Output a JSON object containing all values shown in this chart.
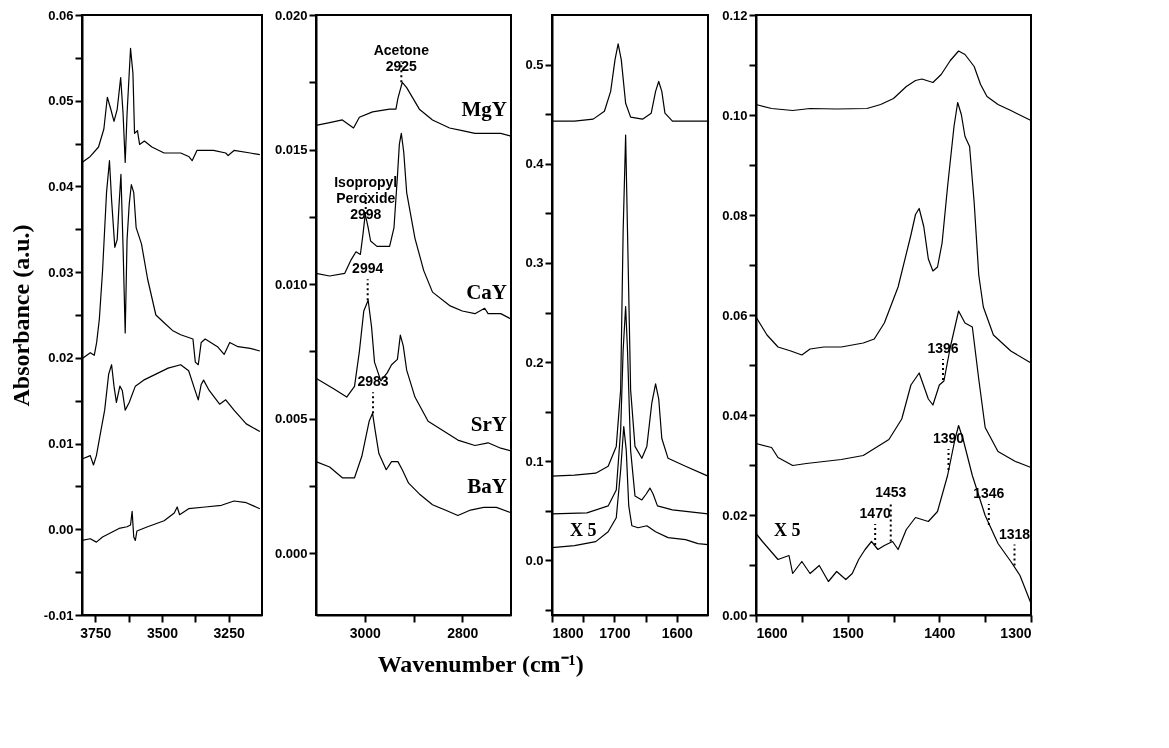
{
  "chart_data": [
    {
      "type": "line",
      "ylabel": "Absorbance (a.u.)",
      "xlim": [
        3800,
        3125
      ],
      "xticks": [
        {
          "value": 3750,
          "label": "3750"
        },
        {
          "value": 3625,
          "label": null
        },
        {
          "value": 3500,
          "label": "3500"
        },
        {
          "value": 3375,
          "label": null
        },
        {
          "value": 3250,
          "label": "3250"
        }
      ],
      "ylim": [
        -0.01,
        0.06
      ],
      "yticks": [
        {
          "value": -0.01,
          "label": "-0.01"
        },
        {
          "value": -0.005,
          "label": null
        },
        {
          "value": 0,
          "label": "0.00"
        },
        {
          "value": 0.005,
          "label": null
        },
        {
          "value": 0.01,
          "label": "0.01"
        },
        {
          "value": 0.015,
          "label": null
        },
        {
          "value": 0.02,
          "label": "0.02"
        },
        {
          "value": 0.025,
          "label": null
        },
        {
          "value": 0.03,
          "label": "0.03"
        },
        {
          "value": 0.035,
          "label": null
        },
        {
          "value": 0.04,
          "label": "0.04"
        },
        {
          "value": 0.045,
          "label": null
        },
        {
          "value": 0.05,
          "label": "0.05"
        },
        {
          "value": 0.055,
          "label": null
        },
        {
          "value": 0.06,
          "label": "0.06"
        }
      ],
      "series": [
        {
          "color": "#000000",
          "x": [
            3800,
            3769,
            3738,
            3718,
            3705,
            3692,
            3680,
            3668,
            3655,
            3646,
            3638,
            3631,
            3618,
            3609,
            3603,
            3592,
            3584,
            3566,
            3538,
            3492,
            3430,
            3400,
            3387,
            3369,
            3307,
            3261,
            3252,
            3230,
            3169,
            3133
          ],
          "values": [
            0.0428,
            0.0435,
            0.0446,
            0.0467,
            0.0504,
            0.049,
            0.0476,
            0.049,
            0.0527,
            0.0485,
            0.0428,
            0.0485,
            0.0561,
            0.0532,
            0.0462,
            0.0465,
            0.0449,
            0.0453,
            0.0446,
            0.0439,
            0.0439,
            0.0435,
            0.043,
            0.0442,
            0.0442,
            0.0439,
            0.0436,
            0.0442,
            0.0439,
            0.0437
          ]
        },
        {
          "color": "#000000",
          "x": [
            3800,
            3769,
            3754,
            3745,
            3735,
            3723,
            3708,
            3697,
            3689,
            3677,
            3668,
            3661,
            3654,
            3646,
            3638,
            3631,
            3623,
            3615,
            3606,
            3597,
            3577,
            3554,
            3523,
            3492,
            3461,
            3430,
            3384,
            3375,
            3364,
            3353,
            3338,
            3292,
            3267,
            3246,
            3215,
            3169,
            3133
          ],
          "values": [
            0.0199,
            0.0206,
            0.0203,
            0.0218,
            0.0245,
            0.0301,
            0.0393,
            0.043,
            0.0384,
            0.0329,
            0.0338,
            0.0379,
            0.0414,
            0.0329,
            0.0229,
            0.0338,
            0.0379,
            0.0402,
            0.0393,
            0.0352,
            0.0333,
            0.0292,
            0.025,
            0.0241,
            0.0232,
            0.0227,
            0.0222,
            0.0195,
            0.0192,
            0.0218,
            0.0222,
            0.0213,
            0.0204,
            0.0218,
            0.0213,
            0.0211,
            0.0208
          ]
        },
        {
          "color": "#000000",
          "x": [
            3800,
            3769,
            3757,
            3746,
            3731,
            3715,
            3700,
            3689,
            3680,
            3671,
            3658,
            3649,
            3638,
            3623,
            3600,
            3569,
            3523,
            3477,
            3430,
            3400,
            3376,
            3364,
            3353,
            3344,
            3323,
            3284,
            3261,
            3230,
            3184,
            3133
          ],
          "values": [
            0.0082,
            0.0086,
            0.0075,
            0.0086,
            0.0112,
            0.0139,
            0.0181,
            0.0192,
            0.0167,
            0.0148,
            0.0167,
            0.0162,
            0.0139,
            0.0148,
            0.0167,
            0.0174,
            0.0181,
            0.0188,
            0.0192,
            0.0185,
            0.0162,
            0.0151,
            0.0169,
            0.0174,
            0.0162,
            0.0146,
            0.0151,
            0.0139,
            0.0123,
            0.0114
          ]
        },
        {
          "color": "#000000",
          "x": [
            3800,
            3769,
            3746,
            3723,
            3692,
            3661,
            3631,
            3618,
            3612,
            3606,
            3600,
            3594,
            3554,
            3492,
            3454,
            3443,
            3434,
            3400,
            3338,
            3277,
            3230,
            3184,
            3133
          ],
          "values": [
            -0.0013,
            -0.0011,
            -0.0015,
            -0.0009,
            -0.0004,
            0.0001,
            0.0003,
            0.0005,
            0.0021,
            -0.0009,
            -0.0013,
            -0.0002,
            0.0003,
            0.001,
            0.0019,
            0.0026,
            0.0017,
            0.0024,
            0.0026,
            0.0028,
            0.0033,
            0.0031,
            0.0024
          ]
        }
      ]
    },
    {
      "type": "line",
      "legend": "right",
      "xlabel": "Wavenumber (cm⁻¹)",
      "xlim": [
        3100,
        2700
      ],
      "xticks": [
        {
          "value": 3000,
          "label": "3000"
        },
        {
          "value": 2900,
          "label": null
        },
        {
          "value": 2800,
          "label": "2800"
        }
      ],
      "ylim": [
        -0.0023,
        0.02
      ],
      "yticks": [
        {
          "value": 0,
          "label": "0.000"
        },
        {
          "value": 0.0025,
          "label": null
        },
        {
          "value": 0.005,
          "label": "0.005"
        },
        {
          "value": 0.0075,
          "label": null
        },
        {
          "value": 0.01,
          "label": "0.010"
        },
        {
          "value": 0.0125,
          "label": null
        },
        {
          "value": 0.015,
          "label": "0.015"
        },
        {
          "value": 0.0175,
          "label": null
        },
        {
          "value": 0.02,
          "label": "0.020"
        }
      ],
      "series": [
        {
          "name": "MgY",
          "color": "#000000",
          "x": [
            3100,
            3072,
            3046,
            3023,
            3011,
            2984,
            2949,
            2936,
            2932,
            2923,
            2914,
            2901,
            2888,
            2861,
            2826,
            2800,
            2774,
            2747,
            2721,
            2700
          ],
          "values": [
            0.0159,
            0.016,
            0.0161,
            0.0158,
            0.0162,
            0.0164,
            0.0165,
            0.0165,
            0.0169,
            0.0175,
            0.0173,
            0.0169,
            0.0165,
            0.0161,
            0.0158,
            0.0157,
            0.0156,
            0.0156,
            0.0156,
            0.0155
          ]
        },
        {
          "name": "CaY",
          "color": "#000000",
          "x": [
            3100,
            3072,
            3041,
            3028,
            3018,
            3009,
            3004,
            2999,
            2993,
            2988,
            2975,
            2949,
            2940,
            2933,
            2929,
            2925,
            2920,
            2914,
            2897,
            2879,
            2861,
            2826,
            2800,
            2774,
            2754,
            2747,
            2721,
            2700
          ],
          "values": [
            0.0104,
            0.0103,
            0.0104,
            0.0109,
            0.0112,
            0.0111,
            0.0118,
            0.0126,
            0.0121,
            0.0116,
            0.0114,
            0.0114,
            0.0121,
            0.014,
            0.0152,
            0.0156,
            0.0149,
            0.0134,
            0.0117,
            0.0105,
            0.0097,
            0.0092,
            0.009,
            0.0089,
            0.0091,
            0.0089,
            0.0089,
            0.0087
          ]
        },
        {
          "name": "SrY",
          "color": "#000000",
          "x": [
            3100,
            3063,
            3037,
            3021,
            3011,
            3002,
            2993,
            2986,
            2980,
            2967,
            2954,
            2945,
            2933,
            2927,
            2921,
            2914,
            2897,
            2870,
            2835,
            2809,
            2774,
            2747,
            2721,
            2700
          ],
          "values": [
            0.0065,
            0.0061,
            0.0058,
            0.0062,
            0.0075,
            0.009,
            0.0094,
            0.0084,
            0.0071,
            0.0064,
            0.0067,
            0.007,
            0.0072,
            0.0081,
            0.0077,
            0.0068,
            0.0058,
            0.0049,
            0.0045,
            0.0042,
            0.004,
            0.0041,
            0.0039,
            0.0038
          ]
        },
        {
          "name": "BaY",
          "color": "#000000",
          "x": [
            3100,
            3072,
            3046,
            3021,
            3006,
            2991,
            2984,
            2979,
            2971,
            2956,
            2945,
            2932,
            2923,
            2910,
            2888,
            2861,
            2835,
            2809,
            2783,
            2756,
            2730,
            2700
          ],
          "values": [
            0.0034,
            0.0032,
            0.0028,
            0.0028,
            0.0036,
            0.0049,
            0.0052,
            0.0046,
            0.0037,
            0.0031,
            0.0034,
            0.0034,
            0.0031,
            0.0026,
            0.0022,
            0.0018,
            0.0016,
            0.0014,
            0.0016,
            0.0017,
            0.0017,
            0.0015
          ]
        }
      ],
      "annotations": [
        {
          "text": "Acetone\n2925",
          "x": 2925,
          "y": 0.0175
        },
        {
          "text": "Isopropyl\nPeroxide\n2998",
          "x": 2998,
          "y": 0.0126
        },
        {
          "text": "2994",
          "x": 2994,
          "y": 0.0094
        },
        {
          "text": "2983",
          "x": 2983,
          "y": 0.0052
        }
      ]
    },
    {
      "type": "line",
      "xlim": [
        1800,
        1550
      ],
      "xticks": [
        {
          "value": 1800,
          "label": "1800"
        },
        {
          "value": 1750,
          "label": null
        },
        {
          "value": 1700,
          "label": "1700"
        },
        {
          "value": 1650,
          "label": null
        },
        {
          "value": 1600,
          "label": "1600"
        }
      ],
      "ylim": [
        -0.055,
        0.55
      ],
      "yticks": [
        {
          "value": -0.05,
          "label": null
        },
        {
          "value": 0,
          "label": "0.0"
        },
        {
          "value": 0.05,
          "label": null
        },
        {
          "value": 0.1,
          "label": "0.1"
        },
        {
          "value": 0.15,
          "label": null
        },
        {
          "value": 0.2,
          "label": "0.2"
        },
        {
          "value": 0.25,
          "label": null
        },
        {
          "value": 0.3,
          "label": "0.3"
        },
        {
          "value": 0.35,
          "label": null
        },
        {
          "value": 0.4,
          "label": "0.4"
        },
        {
          "value": 0.45,
          "label": null
        },
        {
          "value": 0.5,
          "label": "0.5"
        }
      ],
      "series": [
        {
          "color": "#000000",
          "x": [
            1800,
            1764,
            1734,
            1716,
            1706,
            1699,
            1694,
            1689,
            1682,
            1674,
            1655,
            1641,
            1634,
            1629,
            1624,
            1619,
            1607,
            1550
          ],
          "values": [
            0.443,
            0.443,
            0.445,
            0.453,
            0.473,
            0.505,
            0.521,
            0.505,
            0.461,
            0.447,
            0.445,
            0.451,
            0.473,
            0.483,
            0.473,
            0.451,
            0.443,
            0.443
          ]
        },
        {
          "color": "#000000",
          "x": [
            1800,
            1764,
            1730,
            1710,
            1697,
            1690,
            1686,
            1682,
            1679,
            1674,
            1667,
            1656,
            1648,
            1640,
            1634,
            1629,
            1624,
            1614,
            1586,
            1550
          ],
          "values": [
            0.085,
            0.086,
            0.088,
            0.095,
            0.115,
            0.172,
            0.332,
            0.429,
            0.332,
            0.172,
            0.115,
            0.103,
            0.115,
            0.159,
            0.178,
            0.163,
            0.123,
            0.103,
            0.095,
            0.085
          ]
        },
        {
          "color": "#000000",
          "x": [
            1800,
            1744,
            1710,
            1697,
            1690,
            1686,
            1682,
            1679,
            1674,
            1667,
            1656,
            1649,
            1643,
            1638,
            1631,
            1607,
            1550
          ],
          "values": [
            0.047,
            0.048,
            0.055,
            0.071,
            0.131,
            0.212,
            0.256,
            0.212,
            0.111,
            0.065,
            0.061,
            0.067,
            0.073,
            0.067,
            0.055,
            0.051,
            0.047
          ]
        },
        {
          "color": "#000000",
          "x": [
            1800,
            1764,
            1730,
            1710,
            1697,
            1690,
            1685,
            1681,
            1677,
            1672,
            1662,
            1648,
            1634,
            1614,
            1586,
            1566,
            1550
          ],
          "values": [
            0.013,
            0.015,
            0.019,
            0.029,
            0.043,
            0.091,
            0.135,
            0.111,
            0.055,
            0.035,
            0.033,
            0.035,
            0.029,
            0.023,
            0.021,
            0.017,
            0.016
          ]
        }
      ],
      "annotations": [
        "X 5"
      ]
    },
    {
      "type": "line",
      "xlim": [
        1600,
        1300
      ],
      "xticks": [
        {
          "value": 1600,
          "label": "1600"
        },
        {
          "value": 1550,
          "label": null
        },
        {
          "value": 1500,
          "label": "1500"
        },
        {
          "value": 1450,
          "label": null
        },
        {
          "value": 1400,
          "label": "1400"
        },
        {
          "value": 1350,
          "label": null
        },
        {
          "value": 1300,
          "label": "1300"
        }
      ],
      "ylim": [
        0,
        0.12
      ],
      "yticks": [
        {
          "value": 0,
          "label": "0.00"
        },
        {
          "value": 0.01,
          "label": null
        },
        {
          "value": 0.02,
          "label": "0.02"
        },
        {
          "value": 0.03,
          "label": null
        },
        {
          "value": 0.04,
          "label": "0.04"
        },
        {
          "value": 0.05,
          "label": null
        },
        {
          "value": 0.06,
          "label": "0.06"
        },
        {
          "value": 0.07,
          "label": null
        },
        {
          "value": 0.08,
          "label": "0.08"
        },
        {
          "value": 0.09,
          "label": null
        },
        {
          "value": 0.1,
          "label": "0.10"
        },
        {
          "value": 0.11,
          "label": null
        },
        {
          "value": 0.12,
          "label": "0.12"
        }
      ],
      "series": [
        {
          "color": "#000000",
          "x": [
            1600,
            1583,
            1560,
            1541,
            1512,
            1479,
            1464,
            1450,
            1436,
            1426,
            1419,
            1407,
            1398,
            1388,
            1379,
            1372,
            1362,
            1355,
            1348,
            1336,
            1322,
            1300
          ],
          "values": [
            0.1021,
            0.1013,
            0.1009,
            0.1013,
            0.1012,
            0.1013,
            0.1021,
            0.1033,
            0.1057,
            0.1069,
            0.1072,
            0.1065,
            0.1081,
            0.1109,
            0.1128,
            0.1121,
            0.1097,
            0.1061,
            0.1037,
            0.1021,
            0.1009,
            0.0989
          ]
        },
        {
          "color": "#000000",
          "x": [
            1600,
            1588,
            1576,
            1562,
            1550,
            1541,
            1526,
            1507,
            1483,
            1471,
            1460,
            1445,
            1431,
            1426,
            1422,
            1417,
            1412,
            1407,
            1402,
            1397,
            1391,
            1384,
            1380,
            1376,
            1372,
            1367,
            1362,
            1357,
            1352,
            1341,
            1322,
            1300
          ],
          "values": [
            0.0596,
            0.056,
            0.0536,
            0.0528,
            0.052,
            0.0532,
            0.0536,
            0.0536,
            0.0544,
            0.0552,
            0.0584,
            0.0656,
            0.076,
            0.0801,
            0.0813,
            0.0777,
            0.0712,
            0.0688,
            0.0696,
            0.0744,
            0.0857,
            0.0977,
            0.1025,
            0.1001,
            0.0957,
            0.0937,
            0.0825,
            0.068,
            0.0616,
            0.056,
            0.0528,
            0.0504
          ]
        },
        {
          "color": "#000000",
          "x": [
            1600,
            1583,
            1576,
            1560,
            1545,
            1526,
            1507,
            1483,
            1469,
            1455,
            1441,
            1431,
            1422,
            1412,
            1407,
            1400,
            1395,
            1388,
            1379,
            1372,
            1364,
            1357,
            1350,
            1336,
            1317,
            1300
          ],
          "values": [
            0.0343,
            0.0335,
            0.0315,
            0.0299,
            0.0303,
            0.0307,
            0.0311,
            0.0319,
            0.0335,
            0.0351,
            0.0392,
            0.046,
            0.0484,
            0.0432,
            0.042,
            0.046,
            0.0468,
            0.0536,
            0.0608,
            0.0584,
            0.0576,
            0.0472,
            0.0375,
            0.0327,
            0.0307,
            0.0295
          ]
        },
        {
          "color": "#000000",
          "x": [
            1600,
            1593,
            1576,
            1564,
            1560,
            1550,
            1541,
            1531,
            1521,
            1512,
            1502,
            1495,
            1488,
            1481,
            1474,
            1467,
            1460,
            1451,
            1445,
            1436,
            1426,
            1412,
            1402,
            1391,
            1383,
            1379,
            1374,
            1364,
            1350,
            1336,
            1322,
            1312,
            1300
          ],
          "values": [
            0.0163,
            0.0147,
            0.0111,
            0.0119,
            0.0083,
            0.0107,
            0.0083,
            0.0099,
            0.0067,
            0.0087,
            0.0071,
            0.0083,
            0.0111,
            0.0131,
            0.0147,
            0.0131,
            0.0139,
            0.0147,
            0.0131,
            0.0171,
            0.0195,
            0.0187,
            0.0207,
            0.0279,
            0.0351,
            0.0379,
            0.0351,
            0.0279,
            0.0199,
            0.0143,
            0.0107,
            0.0079,
            0.0023
          ]
        }
      ],
      "annotations": [
        "X 5",
        {
          "text": "1396",
          "x": 1396,
          "y": 0.047
        },
        {
          "text": "1390",
          "x": 1390,
          "y": 0.029
        },
        {
          "text": "1470",
          "x": 1470,
          "y": 0.014
        },
        {
          "text": "1453",
          "x": 1453,
          "y": 0.0147
        },
        {
          "text": "1346",
          "x": 1346,
          "y": 0.018
        },
        {
          "text": "1318",
          "x": 1318,
          "y": 0.0099
        }
      ]
    }
  ]
}
